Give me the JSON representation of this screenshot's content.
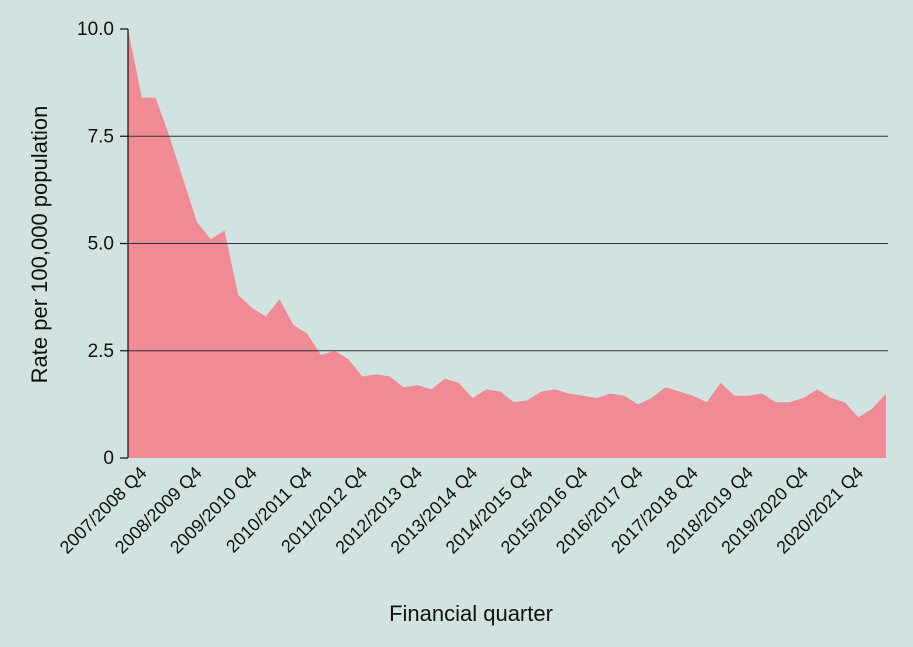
{
  "chart_data": {
    "type": "area",
    "title": "",
    "xlabel": "Financial quarter",
    "ylabel": "Rate per 100,000 population",
    "ylim": [
      0,
      10
    ],
    "yticks": [
      0,
      2.5,
      5.0,
      7.5,
      10.0
    ],
    "ytick_labels": [
      "0",
      "2.5",
      "5.0",
      "7.5",
      "10.0"
    ],
    "grid": "horizontal",
    "colors": {
      "fill": "#f08a95",
      "background": "#d0e3e0",
      "grid": "#333333"
    },
    "quarter_labels": [
      "2007/2008 Q4",
      "2008/2009 Q4",
      "2009/2010 Q4",
      "2010/2011 Q4",
      "2011/2012 Q4",
      "2012/2013 Q4",
      "2013/2014 Q4",
      "2014/2015 Q4",
      "2015/2016 Q4",
      "2016/2017 Q4",
      "2017/2018 Q4",
      "2018/2019 Q4",
      "2019/2020 Q4",
      "2020/2021 Q4"
    ],
    "label_every": 4,
    "series": [
      {
        "values": [
          10.0,
          8.4,
          8.4,
          7.5,
          6.5,
          5.5,
          5.1,
          5.3,
          3.8,
          3.5,
          3.3,
          3.7,
          3.1,
          2.9,
          2.4,
          2.5,
          2.3,
          1.9,
          1.95,
          1.9,
          1.65,
          1.7,
          1.6,
          1.85,
          1.75,
          1.4,
          1.6,
          1.55,
          1.3,
          1.35,
          1.55,
          1.6,
          1.5,
          1.45,
          1.4,
          1.5,
          1.45,
          1.25,
          1.4,
          1.65,
          1.55,
          1.45,
          1.3,
          1.75,
          1.45,
          1.45,
          1.5,
          1.3,
          1.3,
          1.4,
          1.6,
          1.4,
          1.3,
          0.95,
          1.15,
          1.5
        ]
      }
    ]
  }
}
